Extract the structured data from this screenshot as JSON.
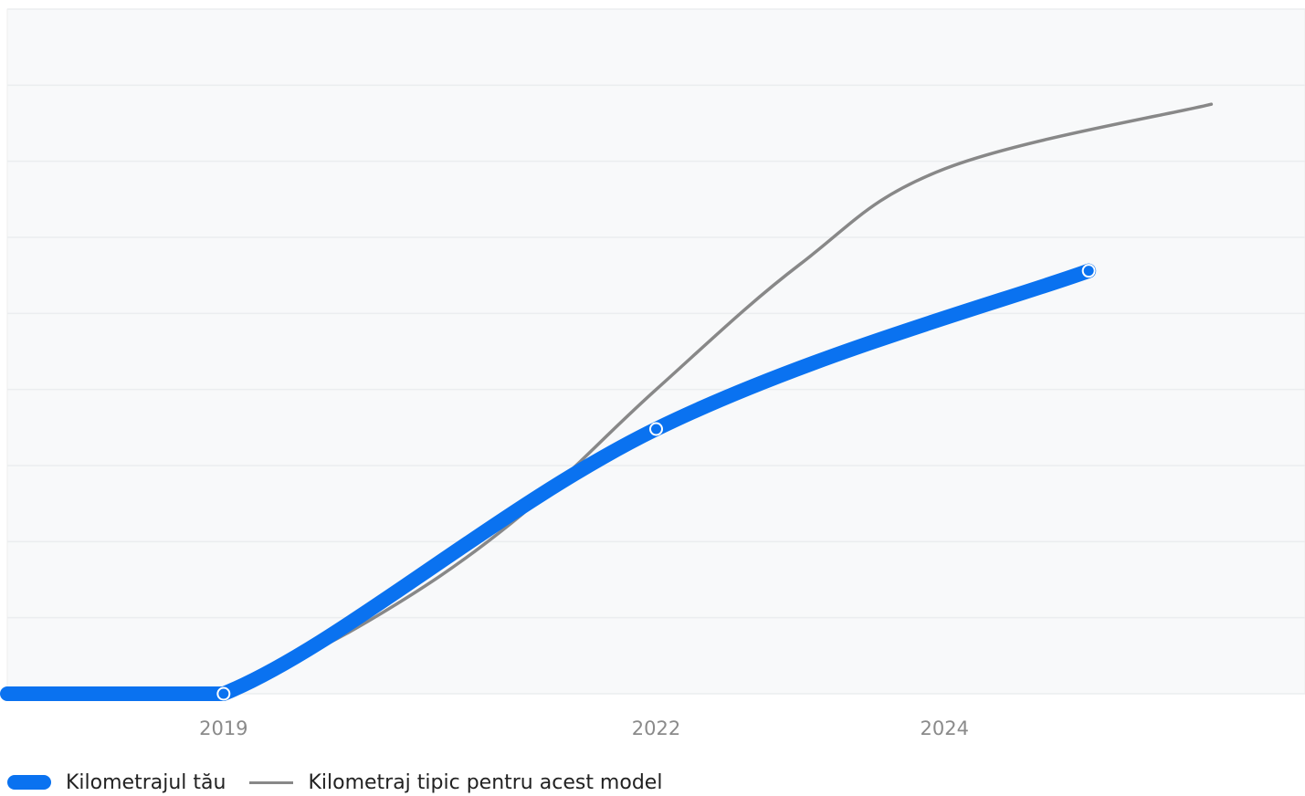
{
  "chart_data": {
    "type": "line",
    "title": "",
    "xlabel": "",
    "ylabel": "",
    "x_ticks": [
      "2019",
      "2022",
      "2024"
    ],
    "xlim": [
      2017.5,
      2026.5
    ],
    "ylim": [
      0,
      9
    ],
    "grid": true,
    "legend_position": "bottom-left",
    "series": [
      {
        "name": "Kilometrajul tău",
        "color": "#0a72f0",
        "points": [
          [
            2017.5,
            0
          ],
          [
            2019,
            0
          ],
          [
            2022,
            3.48
          ],
          [
            2025,
            5.56
          ]
        ],
        "markers": [
          [
            2019,
            0
          ],
          [
            2022,
            3.48
          ],
          [
            2025,
            5.56
          ]
        ]
      },
      {
        "name": "Kilometraj tipic pentru acest model",
        "color": "#888888",
        "points": [
          [
            2019,
            0
          ],
          [
            2020,
            0.95
          ],
          [
            2021,
            2.25
          ],
          [
            2022,
            4.0
          ],
          [
            2023,
            5.65
          ],
          [
            2024,
            6.9
          ],
          [
            2025.85,
            7.75
          ]
        ],
        "markers": []
      }
    ]
  },
  "legend": {
    "series_0_label": "Kilometrajul tău",
    "series_1_label": "Kilometraj tipic pentru acest model"
  },
  "colors": {
    "plot_background": "#f8f9fa",
    "grid": "#ebedef",
    "tick_label": "#8a8a8a",
    "blue": "#0a72f0",
    "gray": "#888888"
  }
}
